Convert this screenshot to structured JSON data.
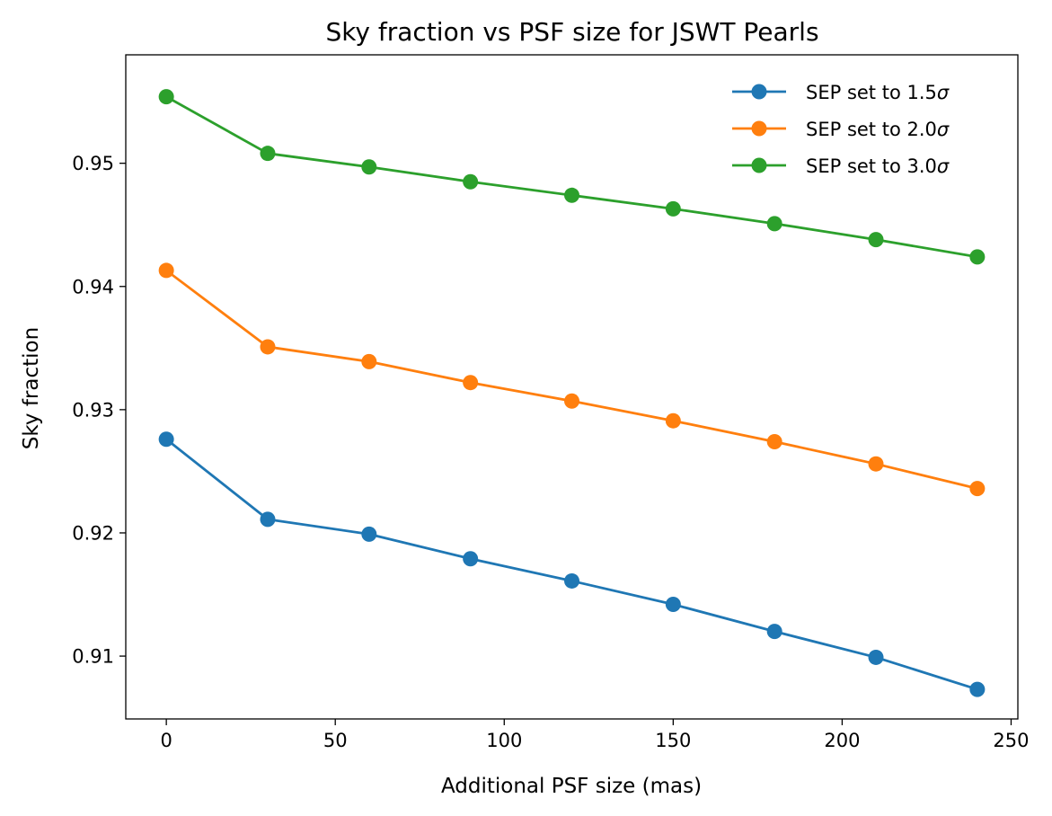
{
  "chart_data": {
    "type": "line",
    "title": "Sky fraction vs PSF size for JSWT Pearls",
    "xlabel": "Additional PSF size (mas)",
    "ylabel": "Sky fraction",
    "xlim": [
      -12,
      252
    ],
    "ylim": [
      0.9049,
      0.9588
    ],
    "xticks": [
      0,
      50,
      100,
      150,
      200,
      250
    ],
    "xtick_labels": [
      "0",
      "50",
      "100",
      "150",
      "200",
      "250"
    ],
    "yticks": [
      0.91,
      0.92,
      0.93,
      0.94,
      0.95
    ],
    "ytick_labels": [
      "0.91",
      "0.92",
      "0.93",
      "0.94",
      "0.95"
    ],
    "grid": false,
    "legend_position": "top-right",
    "x": [
      0,
      30,
      60,
      90,
      120,
      150,
      180,
      210,
      240
    ],
    "series": [
      {
        "name": "SEP set to 1.5σ",
        "label_text": "SEP set to 1.5",
        "label_symbol": "σ",
        "color": "#1f77b4",
        "values": [
          0.9276,
          0.9211,
          0.9199,
          0.9179,
          0.9161,
          0.9142,
          0.912,
          0.9099,
          0.9073
        ]
      },
      {
        "name": "SEP set to 2.0σ",
        "label_text": "SEP set to 2.0",
        "label_symbol": "σ",
        "color": "#ff7f0e",
        "values": [
          0.9413,
          0.9351,
          0.9339,
          0.9322,
          0.9307,
          0.9291,
          0.9274,
          0.9256,
          0.9236
        ]
      },
      {
        "name": "SEP set to 3.0σ",
        "label_text": "SEP set to 3.0",
        "label_symbol": "σ",
        "color": "#2ca02c",
        "values": [
          0.9554,
          0.9508,
          0.9497,
          0.9485,
          0.9474,
          0.9463,
          0.9451,
          0.9438,
          0.9424
        ]
      }
    ]
  }
}
